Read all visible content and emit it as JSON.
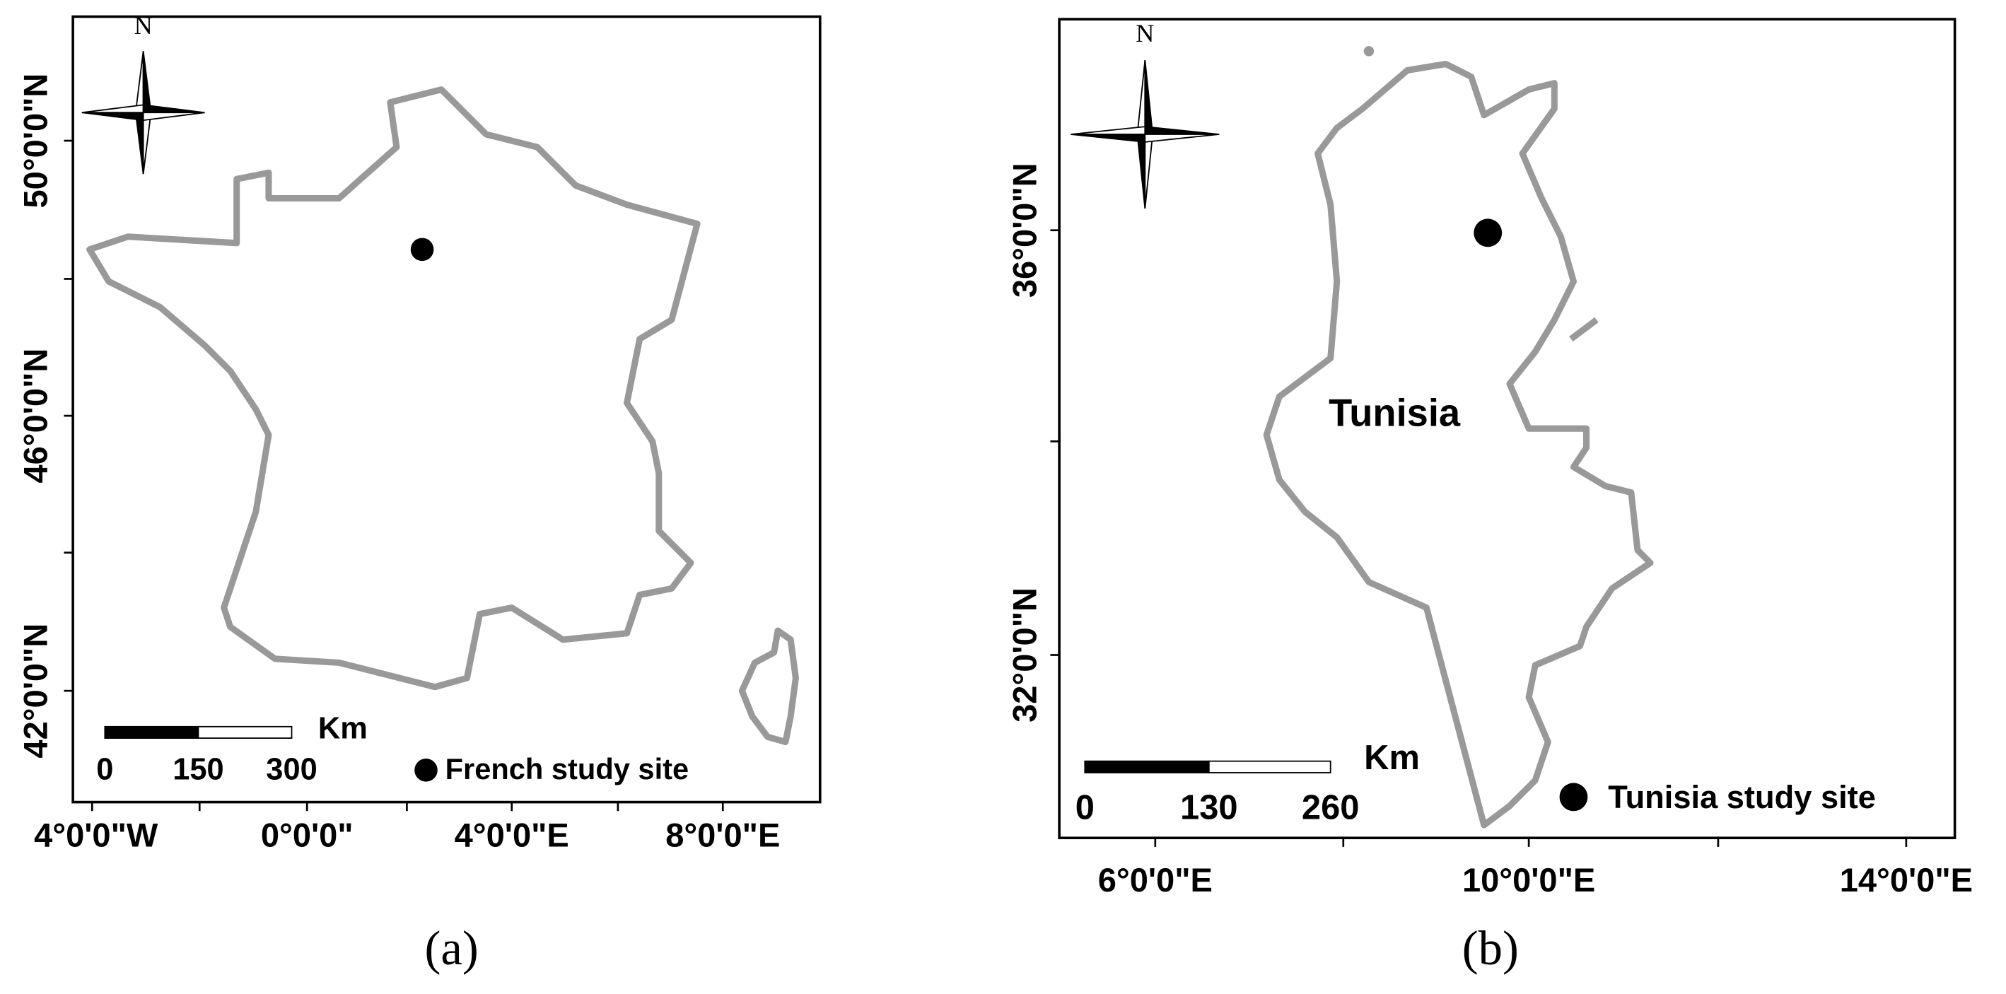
{
  "panels": [
    {
      "caption": "(a)",
      "north": "N",
      "y_labels": [
        "50°0'0\"N",
        "46°0'0\"N",
        "42°0'0\"N"
      ],
      "x_labels": [
        "4°0'0\"W",
        "0°0'0\"",
        "4°0'0\"E",
        "8°0'0\"E"
      ],
      "scale_bar": {
        "unit": "Km",
        "labels": [
          "0",
          "150",
          "300"
        ]
      },
      "legend": "French study site"
    },
    {
      "caption": "(b)",
      "north": "N",
      "country": "Tunisia",
      "y_labels": [
        "36°0'0\"N",
        "32°0'0\"N"
      ],
      "x_labels": [
        "6°0'0\"E",
        "10°0'0\"E",
        "14°0'0\"E"
      ],
      "scale_bar": {
        "unit": "Km",
        "labels": [
          "0",
          "130",
          "260"
        ]
      },
      "legend": "Tunisia study site"
    }
  ]
}
